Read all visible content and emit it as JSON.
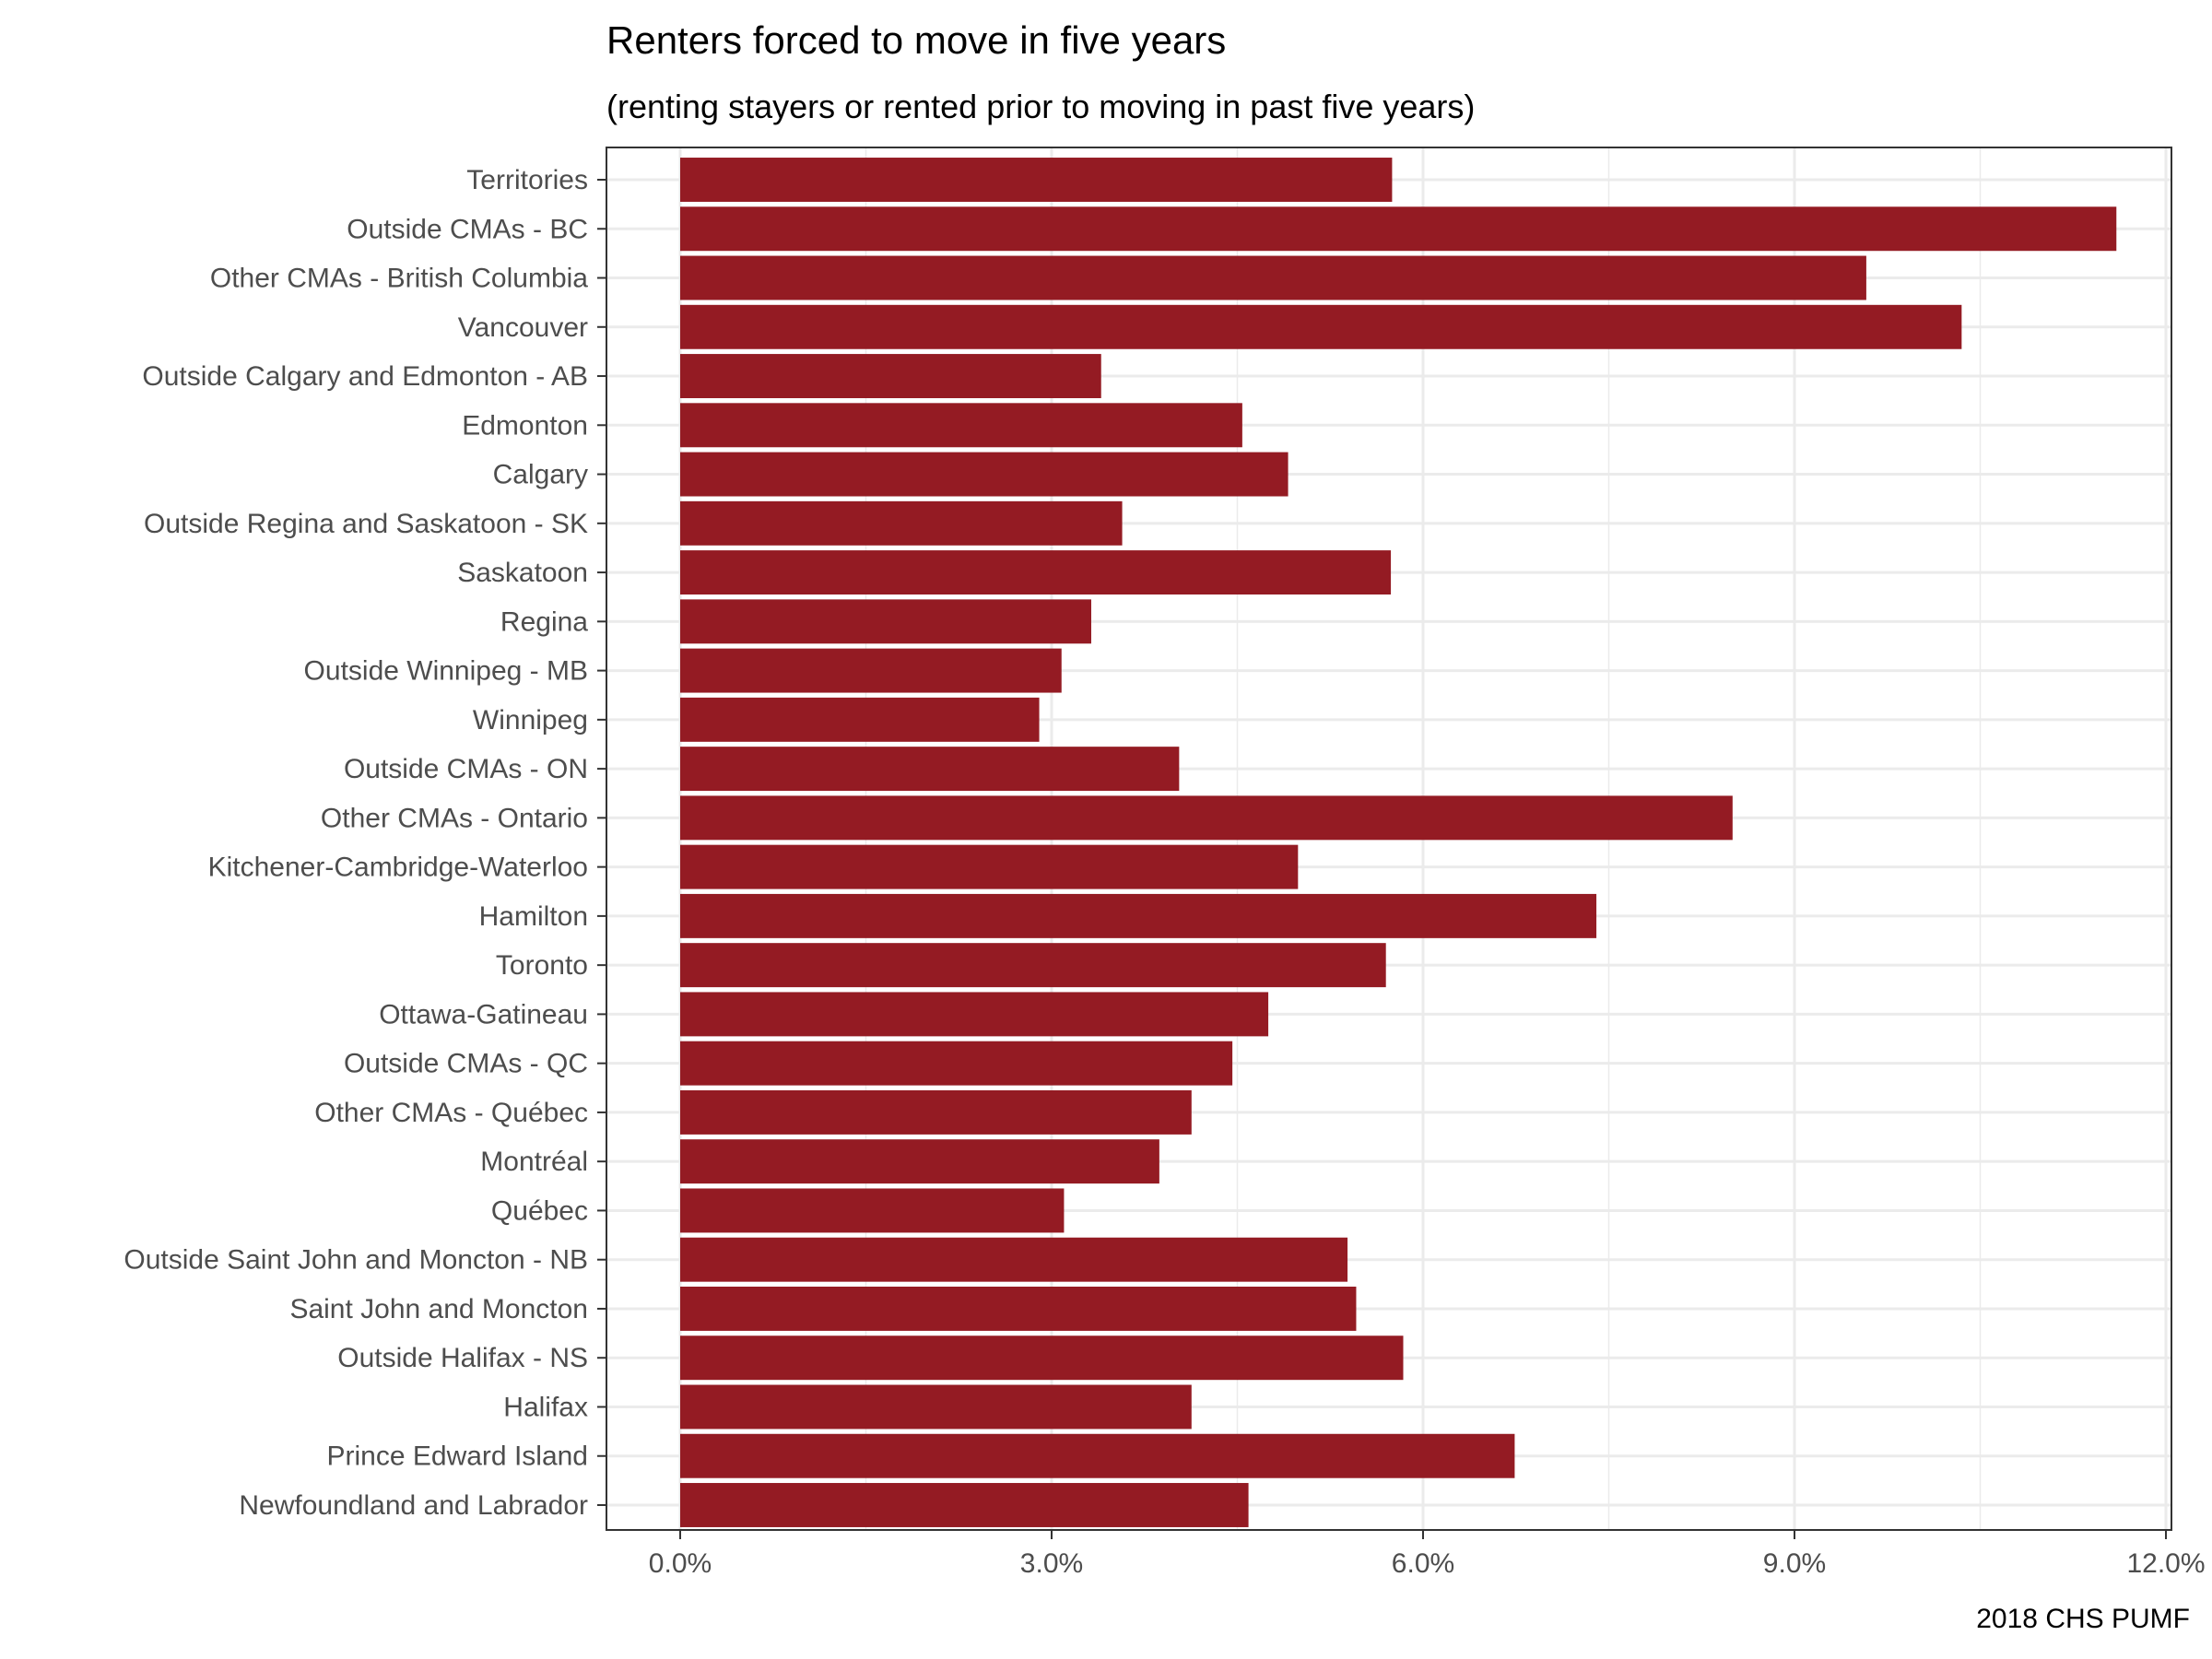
{
  "chart_data": {
    "type": "bar",
    "orientation": "horizontal",
    "title": "Renters forced to move in five years",
    "subtitle": "(renting stayers or rented prior to moving in past five years)",
    "caption": "2018 CHS PUMF",
    "xlabel": "",
    "ylabel": "",
    "xlim": [
      0,
      0.12
    ],
    "x_ticks": [
      0,
      0.03,
      0.06,
      0.09,
      0.12
    ],
    "x_tick_labels": [
      "0.0%",
      "3.0%",
      "6.0%",
      "9.0%",
      "12.0%"
    ],
    "x_minor_ticks": [
      0.015,
      0.045,
      0.075,
      0.105
    ],
    "grid": true,
    "bar_color": "#941b23",
    "categories": [
      "Territories",
      "Outside CMAs - BC",
      "Other CMAs - British Columbia",
      "Vancouver",
      "Outside Calgary and Edmonton - AB",
      "Edmonton",
      "Calgary",
      "Outside Regina and Saskatoon - SK",
      "Saskatoon",
      "Regina",
      "Outside Winnipeg - MB",
      "Winnipeg",
      "Outside CMAs - ON",
      "Other CMAs - Ontario",
      "Kitchener-Cambridge-Waterloo",
      "Hamilton",
      "Toronto",
      "Ottawa-Gatineau",
      "Outside CMAs - QC",
      "Other CMAs - Québec",
      "Montréal",
      "Québec",
      "Outside Saint John and Moncton - NB",
      "Saint John and Moncton",
      "Outside Halifax - NS",
      "Halifax",
      "Prince Edward Island",
      "Newfoundland and Labrador"
    ],
    "values": [
      0.0575,
      0.116,
      0.0958,
      0.1035,
      0.034,
      0.0454,
      0.0491,
      0.0357,
      0.0574,
      0.0332,
      0.0308,
      0.029,
      0.0403,
      0.085,
      0.0499,
      0.074,
      0.057,
      0.0475,
      0.0446,
      0.0413,
      0.0387,
      0.031,
      0.0539,
      0.0546,
      0.0584,
      0.0413,
      0.0674,
      0.0459
    ]
  }
}
